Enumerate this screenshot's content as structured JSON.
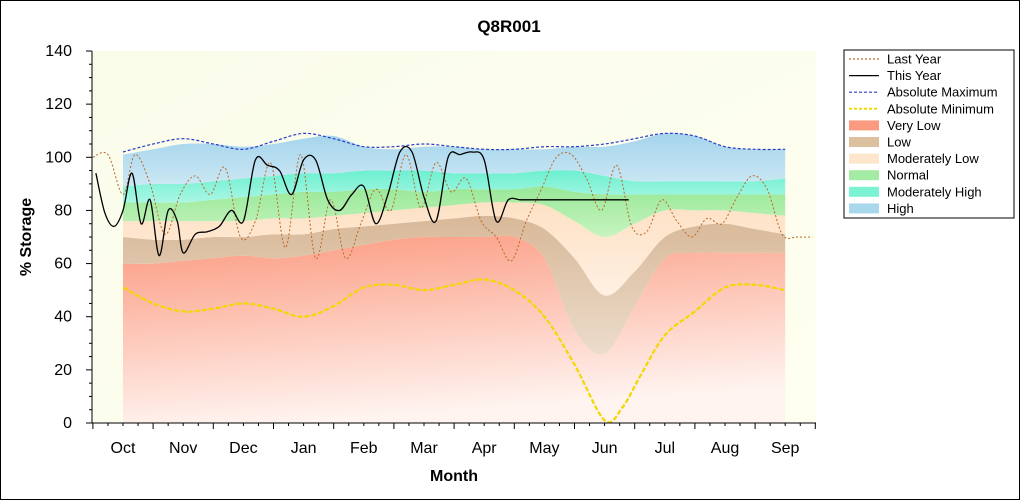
{
  "chart_data": {
    "type": "area",
    "title": "Q8R001",
    "xlabel": "Month",
    "ylabel": "% Storage",
    "ylim": [
      0,
      140
    ],
    "yticks": [
      0,
      20,
      40,
      60,
      80,
      100,
      120,
      140
    ],
    "categories": [
      "Oct",
      "Nov",
      "Dec",
      "Jan",
      "Feb",
      "Mar",
      "Apr",
      "May",
      "Jun",
      "Jul",
      "Aug",
      "Sep"
    ],
    "legend_position": "right",
    "legend": [
      {
        "label": "Last Year",
        "kind": "line",
        "color": "#b8692a",
        "dash": "2,2"
      },
      {
        "label": "This Year",
        "kind": "line",
        "color": "#000000",
        "dash": ""
      },
      {
        "label": "Absolute Maximum",
        "kind": "line",
        "color": "#2a3cc8",
        "dash": "3,2"
      },
      {
        "label": "Absolute Minimum",
        "kind": "line",
        "color": "#f2d800",
        "dash": "3,2"
      },
      {
        "label": "Very Low",
        "kind": "band",
        "color": "#fb9a80"
      },
      {
        "label": "Low",
        "kind": "band",
        "color": "#dcc0a0"
      },
      {
        "label": "Moderately Low",
        "kind": "band",
        "color": "#fde6cc"
      },
      {
        "label": "Normal",
        "kind": "band",
        "color": "#a4eca4"
      },
      {
        "label": "Moderately High",
        "kind": "band",
        "color": "#7cf2d4"
      },
      {
        "label": "High",
        "kind": "band",
        "color": "#a8d8ec"
      }
    ],
    "band_x": [
      0,
      0.5,
      1,
      1.5,
      2,
      2.5,
      3,
      3.5,
      4,
      4.5,
      5,
      5.5,
      6,
      6.5,
      7,
      7.5,
      8,
      8.5,
      9,
      9.5,
      10,
      10.5,
      11
    ],
    "bands": {
      "very_low_top": [
        60,
        60,
        61,
        62,
        63,
        62,
        63,
        65,
        67,
        69,
        70,
        70,
        70,
        70,
        62,
        35,
        26,
        44,
        62,
        64,
        64,
        64,
        64
      ],
      "low_top": [
        70,
        69,
        69,
        70,
        70,
        71,
        71,
        73,
        74,
        75,
        76,
        77,
        78,
        77,
        73,
        62,
        48,
        57,
        70,
        74,
        75,
        73,
        71
      ],
      "moderately_low_top": [
        76,
        76,
        76,
        76,
        76,
        77,
        77,
        78,
        79,
        80,
        81,
        82,
        83,
        83,
        82,
        76,
        70,
        75,
        80,
        80,
        80,
        79,
        78
      ],
      "normal_top": [
        83,
        83,
        83,
        84,
        85,
        86,
        87,
        87,
        88,
        88,
        87,
        88,
        88,
        88,
        89,
        87,
        86,
        86,
        86,
        86,
        86,
        86,
        86
      ],
      "moderately_high_top": [
        89,
        90,
        90,
        91,
        92,
        93,
        94,
        94,
        95,
        95,
        95,
        94,
        94,
        94,
        95,
        95,
        93,
        91,
        91,
        91,
        91,
        91,
        92
      ],
      "high_top": [
        101,
        103,
        105,
        105,
        104,
        105,
        107,
        108,
        104,
        103,
        104,
        104,
        103,
        103,
        103,
        104,
        104,
        106,
        109,
        108,
        104,
        103,
        103
      ]
    },
    "series": [
      {
        "name": "Absolute Maximum",
        "x": [
          0,
          0.5,
          1,
          1.5,
          2,
          2.5,
          3,
          3.5,
          4,
          4.5,
          5,
          5.5,
          6,
          6.5,
          7,
          7.5,
          8,
          8.5,
          9,
          9.5,
          10,
          10.5,
          11
        ],
        "y": [
          102,
          105,
          107,
          105,
          103,
          106,
          109,
          107,
          104,
          104,
          105,
          104,
          103,
          103,
          104,
          104,
          105,
          107,
          109,
          108,
          104,
          103,
          103
        ]
      },
      {
        "name": "Absolute Minimum",
        "x": [
          0,
          0.5,
          1,
          1.5,
          2,
          2.5,
          3,
          3.5,
          4,
          4.5,
          5,
          5.5,
          6,
          6.5,
          7,
          7.5,
          8,
          8.3,
          8.6,
          9,
          9.5,
          10,
          10.5,
          11
        ],
        "y": [
          51,
          45,
          42,
          43,
          45,
          43,
          40,
          44,
          51,
          52,
          50,
          52,
          54,
          50,
          40,
          22,
          1,
          6,
          18,
          33,
          42,
          51,
          52,
          50
        ]
      },
      {
        "name": "Last Year",
        "x": [
          -0.5,
          -0.25,
          0,
          0.2,
          0.45,
          0.7,
          0.95,
          1.2,
          1.45,
          1.7,
          1.95,
          2.2,
          2.45,
          2.7,
          2.95,
          3.2,
          3.45,
          3.7,
          3.95,
          4.2,
          4.45,
          4.7,
          4.95,
          5.2,
          5.45,
          5.7,
          5.95,
          6.2,
          6.45,
          6.7,
          6.95,
          7.2,
          7.45,
          7.7,
          7.95,
          8.2,
          8.45,
          8.7,
          8.95,
          9.2,
          9.45,
          9.7,
          9.95,
          10.2,
          10.45,
          10.7,
          10.95,
          11.2,
          11.45
        ],
        "y": [
          100,
          101,
          86,
          101,
          90,
          71,
          86,
          93,
          86,
          96,
          70,
          76,
          98,
          66,
          101,
          62,
          84,
          62,
          75,
          88,
          80,
          101,
          81,
          98,
          87,
          92,
          76,
          70,
          61,
          76,
          88,
          100,
          101,
          92,
          80,
          97,
          74,
          72,
          84,
          76,
          70,
          77,
          75,
          85,
          93,
          88,
          71,
          70,
          70
        ]
      },
      {
        "name": "This Year",
        "x": [
          -0.45,
          -0.3,
          -0.15,
          0,
          0.15,
          0.3,
          0.45,
          0.6,
          0.75,
          0.9,
          1.0,
          1.2,
          1.4,
          1.6,
          1.8,
          2.0,
          2.2,
          2.4,
          2.6,
          2.8,
          3.0,
          3.2,
          3.4,
          3.6,
          3.8,
          4.0,
          4.2,
          4.4,
          4.6,
          4.8,
          5.0,
          5.2,
          5.4,
          5.6,
          5.8,
          6.0,
          6.2,
          6.4,
          6.6,
          6.8,
          7.0,
          7.2,
          7.4,
          7.6,
          7.8,
          8.0,
          8.2,
          8.4
        ],
        "y": [
          94,
          79,
          74,
          80,
          94,
          75,
          84,
          63,
          80,
          76,
          64,
          71,
          72,
          74,
          80,
          76,
          99,
          97,
          95,
          86,
          99,
          99,
          84,
          80,
          86,
          89,
          75,
          86,
          102,
          102,
          85,
          76,
          100,
          101,
          102,
          99,
          76,
          84,
          84,
          84,
          84,
          84,
          84,
          84,
          84,
          84,
          84,
          84
        ]
      }
    ]
  }
}
